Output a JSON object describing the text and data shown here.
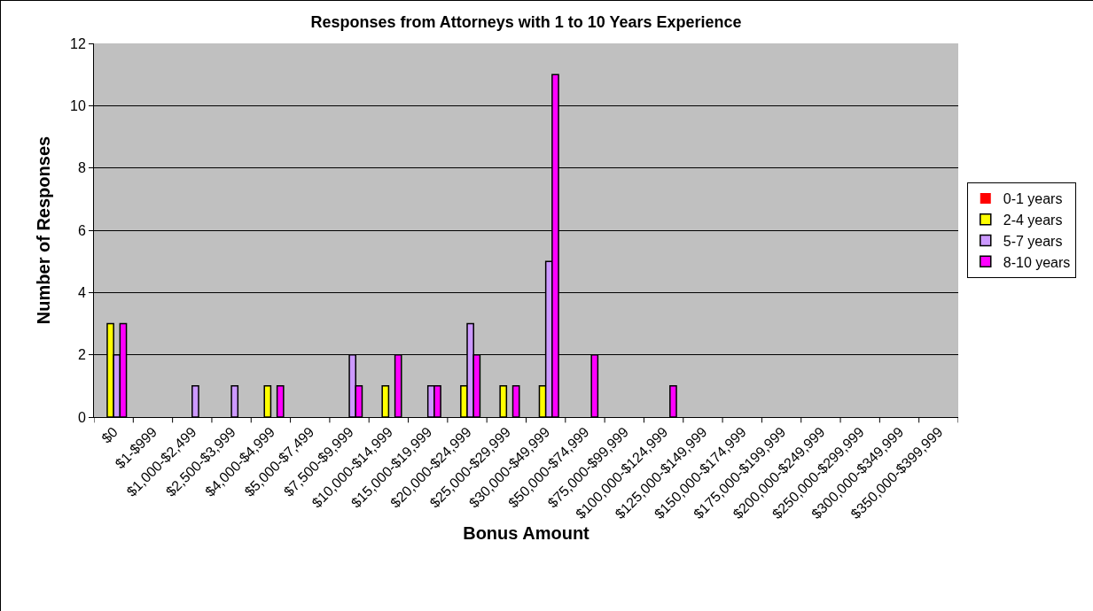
{
  "chart_data": {
    "type": "bar",
    "title": "Responses from Attorneys with 1 to 10 Years Experience",
    "xlabel": "Bonus Amount",
    "ylabel": "Number of Responses",
    "categories": [
      "$0",
      "$1-$999",
      "$1,000-$2,499",
      "$2,500-$3,999",
      "$4,000-$4,999",
      "$5,000-$7,499",
      "$7,500-$9,999",
      "$10,000-$14,999",
      "$15,000-$19,999",
      "$20,000-$24,999",
      "$25,000-$29,999",
      "$30,000-$49,999",
      "$50,000-$74,999",
      "$75,000-$99,999",
      "$100,000-$124,999",
      "$125,000-$149,999",
      "$150,000-$174,999",
      "$175,000-$199,999",
      "$200,000-$249,999",
      "$250,000-$299,999",
      "$300,000-$349,999",
      "$350,000-$399,999"
    ],
    "series": [
      {
        "name": "0-1 years",
        "color": "#ff0000",
        "values": [
          0,
          0,
          0,
          0,
          0,
          0,
          0,
          0,
          0,
          0,
          0,
          0,
          0,
          0,
          0,
          0,
          0,
          0,
          0,
          0,
          0,
          0
        ]
      },
      {
        "name": "2-4 years",
        "color": "#ffff00",
        "values": [
          3,
          0,
          0,
          0,
          1,
          0,
          0,
          1,
          0,
          1,
          1,
          1,
          0,
          0,
          0,
          0,
          0,
          0,
          0,
          0,
          0,
          0
        ]
      },
      {
        "name": "5-7 years",
        "color": "#cc99ff",
        "values": [
          2,
          0,
          1,
          1,
          0,
          0,
          2,
          0,
          1,
          3,
          0,
          5,
          0,
          0,
          0,
          0,
          0,
          0,
          0,
          0,
          0,
          0
        ]
      },
      {
        "name": "8-10 years",
        "color": "#ff00ff",
        "values": [
          3,
          0,
          0,
          0,
          1,
          0,
          1,
          2,
          1,
          2,
          1,
          11,
          2,
          0,
          1,
          0,
          0,
          0,
          0,
          0,
          0,
          0
        ]
      }
    ],
    "ylim": [
      0,
      12
    ],
    "yticks": [
      0,
      2,
      4,
      6,
      8,
      10,
      12
    ],
    "grid": "y",
    "legend": "right"
  }
}
